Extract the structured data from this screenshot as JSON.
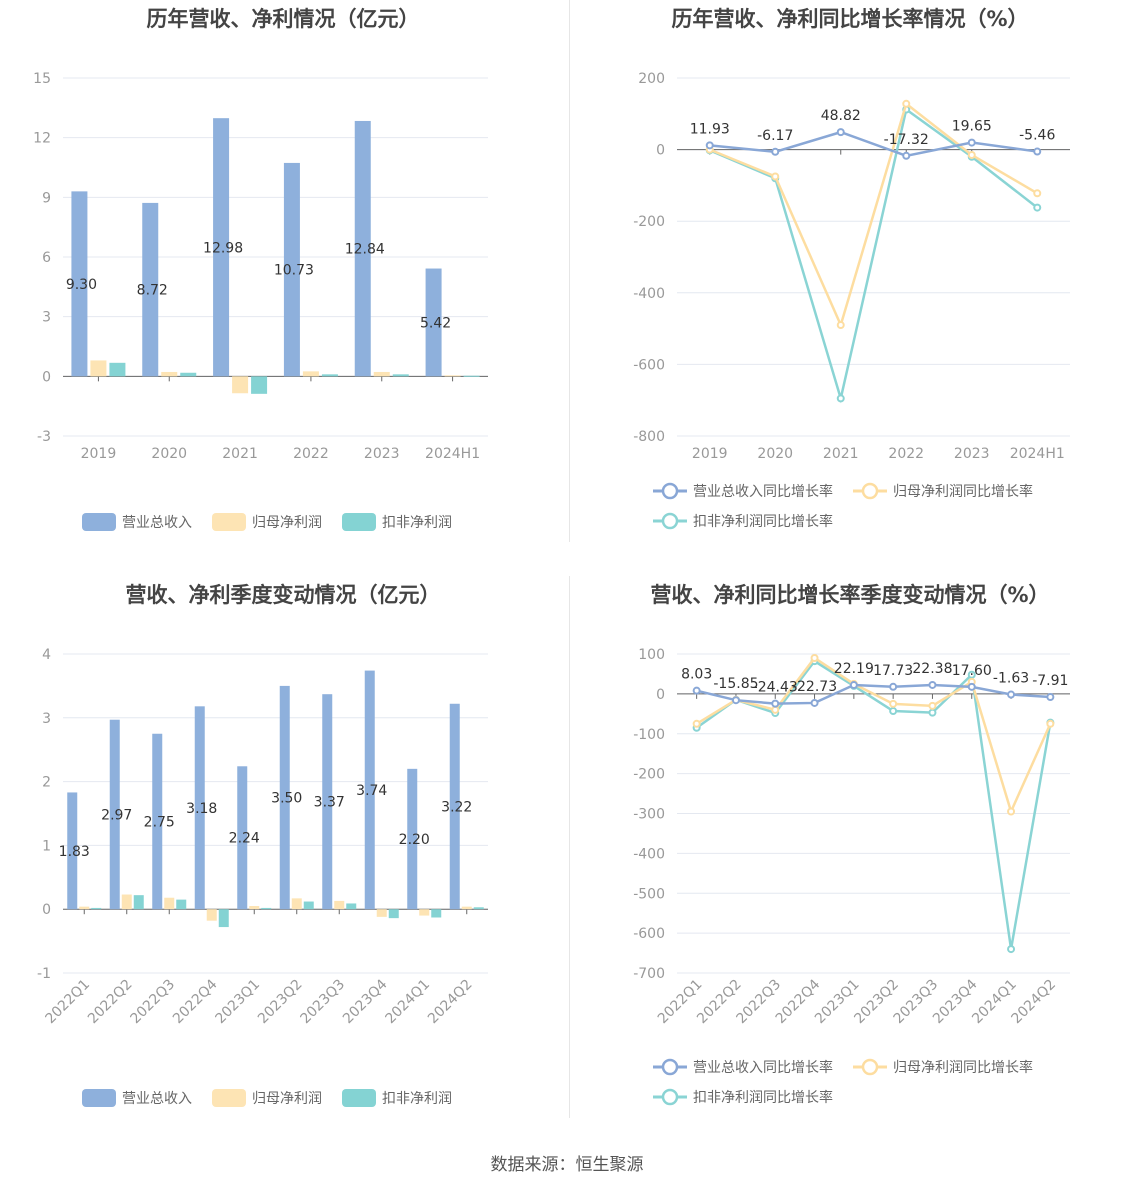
{
  "source_text": "数据来源：恒生聚源",
  "colors": {
    "revenue": "#8eb0dc",
    "net_profit": "#fde4b4",
    "deducted_profit": "#84d3d3",
    "revenue_line": "#89a7d6",
    "net_line": "#fddda0",
    "deducted_line": "#8ad4d4",
    "grid": "#e4e8f0",
    "axis": "#666666"
  },
  "chart_data": [
    {
      "id": "annual_amount",
      "type": "bar",
      "title": "历年营收、净利情况（亿元）",
      "categories": [
        "2019",
        "2020",
        "2021",
        "2022",
        "2023",
        "2024H1"
      ],
      "ylim": [
        -3,
        15
      ],
      "yticks": [
        -3,
        0,
        3,
        6,
        9,
        12,
        15
      ],
      "grid": true,
      "legend_position": "bottom",
      "series": [
        {
          "name": "营业总收入",
          "values": [
            9.3,
            8.72,
            12.98,
            10.73,
            12.84,
            5.42
          ],
          "labels": [
            "9.30",
            "8.72",
            "12.98",
            "10.73",
            "12.84",
            "5.42"
          ]
        },
        {
          "name": "归母净利润",
          "values": [
            0.8,
            0.22,
            -0.85,
            0.25,
            0.22,
            0.05
          ]
        },
        {
          "name": "扣非净利润",
          "values": [
            0.68,
            0.18,
            -0.88,
            0.1,
            0.1,
            0.03
          ]
        }
      ]
    },
    {
      "id": "annual_growth",
      "type": "line",
      "title": "历年营收、净利同比增长率情况（%）",
      "categories": [
        "2019",
        "2020",
        "2021",
        "2022",
        "2023",
        "2024H1"
      ],
      "ylim": [
        -800,
        200
      ],
      "yticks": [
        -800,
        -600,
        -400,
        -200,
        0,
        200
      ],
      "grid": true,
      "legend_position": "bottom",
      "series": [
        {
          "name": "营业总收入同比增长率",
          "values": [
            11.93,
            -6.17,
            48.82,
            -17.32,
            19.65,
            -5.46
          ],
          "labels": [
            "11.93",
            "-6.17",
            "48.82",
            "-17.32",
            "19.65",
            "-5.46"
          ]
        },
        {
          "name": "归母净利润同比增长率",
          "values": [
            0,
            -75,
            -490,
            128,
            -15,
            -122
          ]
        },
        {
          "name": "扣非净利润同比增长率",
          "values": [
            -2,
            -80,
            -695,
            112,
            -20,
            -162
          ]
        }
      ]
    },
    {
      "id": "quarterly_amount",
      "type": "bar",
      "title": "营收、净利季度变动情况（亿元）",
      "categories": [
        "2022Q1",
        "2022Q2",
        "2022Q3",
        "2022Q4",
        "2023Q1",
        "2023Q2",
        "2023Q3",
        "2023Q4",
        "2024Q1",
        "2024Q2"
      ],
      "ylim": [
        -1,
        4
      ],
      "yticks": [
        -1,
        0,
        1,
        2,
        3,
        4
      ],
      "grid": true,
      "legend_position": "bottom",
      "series": [
        {
          "name": "营业总收入",
          "values": [
            1.83,
            2.97,
            2.75,
            3.18,
            2.24,
            3.5,
            3.37,
            3.74,
            2.2,
            3.22
          ],
          "labels": [
            "1.83",
            "2.97",
            "2.75",
            "3.18",
            "2.24",
            "3.50",
            "3.37",
            "3.74",
            "2.20",
            "3.22"
          ]
        },
        {
          "name": "归母净利润",
          "values": [
            0.04,
            0.23,
            0.18,
            -0.18,
            0.05,
            0.17,
            0.13,
            -0.12,
            -0.1,
            0.04
          ]
        },
        {
          "name": "扣非净利润",
          "values": [
            0.02,
            0.22,
            0.15,
            -0.28,
            0.02,
            0.12,
            0.09,
            -0.14,
            -0.13,
            0.03
          ]
        }
      ]
    },
    {
      "id": "quarterly_growth",
      "type": "line",
      "title": "营收、净利同比增长率季度变动情况（%）",
      "categories": [
        "2022Q1",
        "2022Q2",
        "2022Q3",
        "2022Q4",
        "2023Q1",
        "2023Q2",
        "2023Q3",
        "2023Q4",
        "2024Q1",
        "2024Q2"
      ],
      "ylim": [
        -700,
        100
      ],
      "yticks": [
        -700,
        -600,
        -500,
        -400,
        -300,
        -200,
        -100,
        0,
        100
      ],
      "grid": true,
      "legend_position": "bottom",
      "series": [
        {
          "name": "营业总收入同比增长率",
          "values": [
            8.03,
            -15.85,
            -24.43,
            -22.73,
            22.19,
            17.73,
            22.38,
            17.6,
            -1.63,
            -7.91
          ],
          "labels": [
            "8.03",
            "-15.85",
            "-24.43",
            "-22.73",
            "22.19",
            "17.73",
            "22.38",
            "17.60",
            "-1.63",
            "-7.91"
          ]
        },
        {
          "name": "归母净利润同比增长率",
          "values": [
            -75,
            -15,
            -40,
            90,
            25,
            -25,
            -30,
            30,
            -295,
            -75
          ]
        },
        {
          "name": "扣非净利润同比增长率",
          "values": [
            -85,
            -15,
            -48,
            82,
            20,
            -43,
            -47,
            48,
            -640,
            -72
          ]
        }
      ]
    }
  ]
}
